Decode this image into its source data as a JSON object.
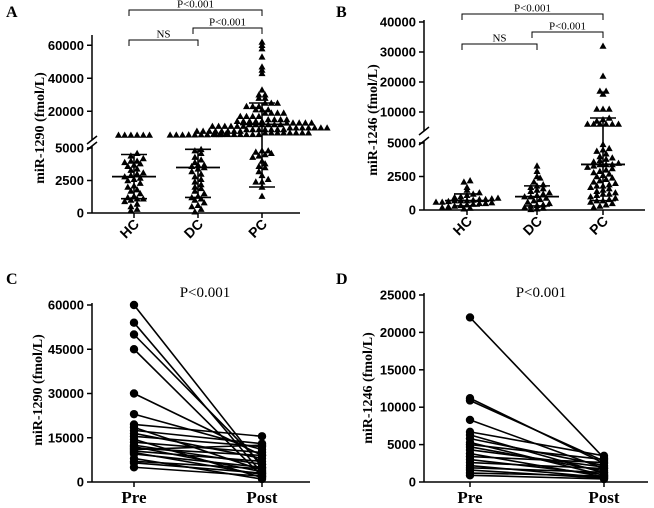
{
  "chart_data": [
    {
      "panel": "A",
      "type": "scatter",
      "ylabel": "miR-1290 (fmol/L)",
      "categories": [
        "HC",
        "DC",
        "PC"
      ],
      "axis_break": 5000,
      "ylim": [
        0,
        65000
      ],
      "yticks": [
        "0",
        "2500",
        "5000",
        "20000",
        "40000",
        "60000"
      ],
      "marker": "triangle",
      "groups": [
        {
          "category": "HC",
          "median": 2800,
          "q1": 1100,
          "q3": 4500,
          "values": [
            200,
            300,
            500,
            700,
            900,
            1000,
            1100,
            1100,
            1200,
            1300,
            1500,
            1700,
            1800,
            2000,
            2100,
            2300,
            2500,
            2600,
            2700,
            2800,
            2900,
            3000,
            3100,
            3300,
            3400,
            3600,
            3700,
            3800,
            3900,
            4000,
            4000,
            4200,
            4400,
            4600,
            5600,
            5600,
            5600,
            5600,
            5600,
            5600
          ]
        },
        {
          "category": "DC",
          "median": 3500,
          "q1": 1200,
          "q3": 4900,
          "values": [
            100,
            300,
            500,
            600,
            800,
            1000,
            1100,
            1200,
            1300,
            1500,
            1700,
            1900,
            2000,
            2200,
            2400,
            2600,
            2800,
            3000,
            3200,
            3400,
            3500,
            3600,
            3700,
            3700,
            3900,
            4100,
            4300,
            4600,
            4800,
            4900,
            5700,
            5700,
            5700,
            5800,
            5800,
            5900,
            5900,
            6000,
            6000,
            6200
          ]
        },
        {
          "category": "PC",
          "median": 12000,
          "q1": 2000,
          "q3": 25000,
          "values": [
            1300,
            2000,
            2400,
            2400,
            2600,
            2900,
            3200,
            3500,
            3600,
            3800,
            4000,
            4300,
            4400,
            4500,
            4600,
            4700,
            4800,
            4800,
            6000,
            6000,
            6000,
            6000,
            6000,
            6000,
            6000,
            6000,
            7000,
            7000,
            7000,
            7000,
            7000,
            7000,
            7000,
            7000,
            8000,
            8000,
            8000,
            8000,
            8000,
            8000,
            8000,
            8000,
            9000,
            9000,
            9000,
            9000,
            9000,
            9000,
            9000,
            10000,
            10000,
            10000,
            10000,
            10000,
            10000,
            10000,
            11000,
            11000,
            11000,
            11000,
            11000,
            11000,
            12000,
            12000,
            12000,
            12000,
            12000,
            12000,
            13000,
            13000,
            13000,
            13000,
            13000,
            14000,
            14000,
            14000,
            14000,
            14000,
            15000,
            15000,
            15000,
            15000,
            17000,
            17000,
            17000,
            17000,
            19000,
            19000,
            19000,
            19000,
            21000,
            21000,
            21000,
            23000,
            23000,
            23000,
            25000,
            25000,
            25000,
            28000,
            28000,
            30000,
            30000,
            33000,
            43000,
            45000,
            47000,
            53000,
            58000,
            60000,
            62000
          ]
        }
      ],
      "comparisons": [
        {
          "from": "HC",
          "to": "DC",
          "label": "NS"
        },
        {
          "from": "DC",
          "to": "PC",
          "label": "P<0.001"
        },
        {
          "from": "HC",
          "to": "PC",
          "label": "P<0.001"
        }
      ]
    },
    {
      "panel": "B",
      "type": "scatter",
      "ylabel": "miR-1246 (fmol/L)",
      "categories": [
        "HC",
        "DC",
        "PC"
      ],
      "axis_break": 5000,
      "ylim": [
        0,
        40000
      ],
      "yticks": [
        "0",
        "2500",
        "5000",
        "10000",
        "20000",
        "30000",
        "40000"
      ],
      "marker": "triangle",
      "groups": [
        {
          "category": "HC",
          "median": 700,
          "q1": 300,
          "q3": 1200,
          "values": [
            100,
            150,
            200,
            250,
            300,
            350,
            400,
            450,
            500,
            500,
            550,
            600,
            600,
            650,
            700,
            700,
            700,
            750,
            800,
            800,
            850,
            900,
            950,
            1000,
            1100,
            1200,
            1300,
            1500,
            1700,
            2100,
            2200
          ]
        },
        {
          "category": "DC",
          "median": 1000,
          "q1": 300,
          "q3": 1800,
          "values": [
            50,
            100,
            150,
            200,
            300,
            350,
            400,
            500,
            600,
            700,
            800,
            900,
            1000,
            1000,
            1100,
            1200,
            1300,
            1400,
            1500,
            1600,
            1700,
            1800,
            1900,
            2100,
            2400,
            2500,
            2900,
            3300
          ]
        },
        {
          "category": "PC",
          "median": 3400,
          "q1": 700,
          "q3": 8000,
          "values": [
            200,
            300,
            400,
            500,
            600,
            700,
            700,
            800,
            900,
            1000,
            1100,
            1200,
            1200,
            1300,
            1400,
            1500,
            1600,
            1700,
            1800,
            1800,
            1900,
            2000,
            2100,
            2200,
            2300,
            2400,
            2500,
            2600,
            2700,
            2800,
            2900,
            3000,
            3100,
            3200,
            3300,
            3400,
            3400,
            3400,
            3500,
            3600,
            3700,
            3800,
            3900,
            4000,
            4200,
            4400,
            4500,
            4600,
            4900,
            6000,
            6000,
            6000,
            6000,
            6000,
            6000,
            7000,
            7500,
            8000,
            11000,
            11000,
            11000,
            16000,
            17000,
            17000,
            22000,
            32000
          ]
        }
      ],
      "comparisons": [
        {
          "from": "HC",
          "to": "DC",
          "label": "NS"
        },
        {
          "from": "DC",
          "to": "PC",
          "label": "P<0.001"
        },
        {
          "from": "HC",
          "to": "PC",
          "label": "P<0.001"
        }
      ]
    },
    {
      "panel": "C",
      "type": "line",
      "ylabel": "miR-1290 (fmol/L)",
      "categories": [
        "Pre",
        "Post"
      ],
      "ylim": [
        0,
        60000
      ],
      "yticks": [
        "0",
        "15000",
        "30000",
        "45000",
        "60000"
      ],
      "annotation": "P<0.001",
      "pre": [
        60000,
        54000,
        50000,
        45000,
        30000,
        23000,
        19500,
        18500,
        17500,
        16500,
        15500,
        14500,
        13500,
        12500,
        12000,
        11500,
        11000,
        10500,
        10000,
        9500,
        8000,
        7000,
        6500,
        5000
      ],
      "post": [
        5000,
        3000,
        6000,
        2000,
        9000,
        11000,
        15500,
        4000,
        13000,
        8000,
        12000,
        1500,
        10000,
        6000,
        3500,
        9000,
        12500,
        7000,
        2500,
        5000,
        1000,
        4500,
        3000,
        2000
      ]
    },
    {
      "panel": "D",
      "type": "line",
      "ylabel": "miR-1246 (fmol/L)",
      "categories": [
        "Pre",
        "Post"
      ],
      "ylim": [
        0,
        25000
      ],
      "yticks": [
        "0",
        "5000",
        "10000",
        "15000",
        "20000",
        "25000"
      ],
      "annotation": "P<0.001",
      "pre": [
        22000,
        11200,
        10900,
        8300,
        6700,
        6300,
        5800,
        5300,
        5000,
        4700,
        4300,
        3800,
        3400,
        3000,
        2600,
        2200,
        1900,
        1600,
        1200,
        900
      ],
      "post": [
        3200,
        2500,
        2800,
        1800,
        3500,
        1200,
        2200,
        900,
        3000,
        1500,
        2000,
        700,
        2600,
        1000,
        1800,
        600,
        1300,
        500,
        800,
        400
      ]
    }
  ]
}
